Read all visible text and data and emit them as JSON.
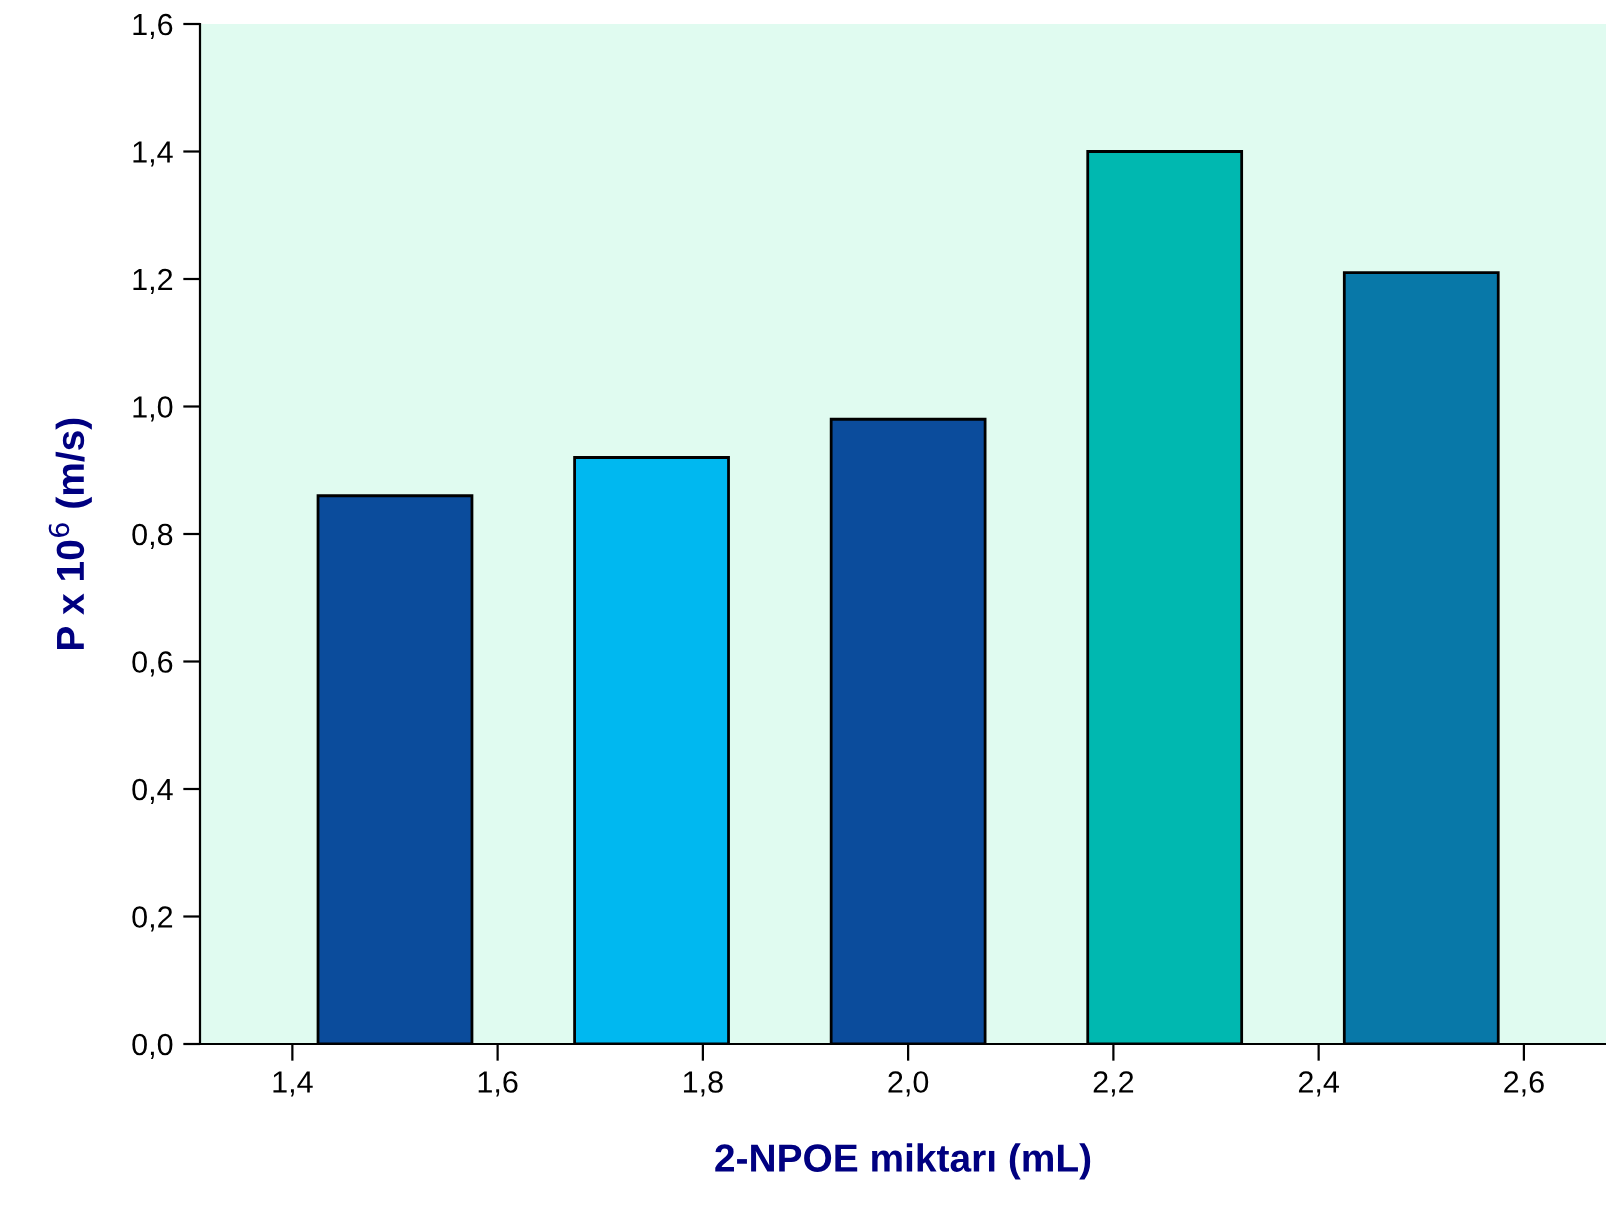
{
  "chart_data": {
    "type": "bar",
    "xlabel": "2-NPOE miktarı (mL)",
    "ylabel": "P x 10$^{6}$ (m/s)",
    "x": [
      1.5,
      1.75,
      2.0,
      2.25,
      2.5
    ],
    "values": [
      0.86,
      0.92,
      0.98,
      1.4,
      1.21
    ],
    "colors": [
      "#0b4c9c",
      "#00b8f0",
      "#0b4c9c",
      "#00b8b0",
      "#0878a8"
    ],
    "xlim": [
      1.31,
      2.68
    ],
    "xticks": [
      {
        "value": 1.4,
        "label": "1,4"
      },
      {
        "value": 1.6,
        "label": "1,6"
      },
      {
        "value": 1.8,
        "label": "1,8"
      },
      {
        "value": 2.0,
        "label": "2,0"
      },
      {
        "value": 2.2,
        "label": "2,2"
      },
      {
        "value": 2.4,
        "label": "2,4"
      },
      {
        "value": 2.6,
        "label": "2,6"
      }
    ],
    "ylim": [
      0,
      1.6
    ],
    "yticks": [
      {
        "value": 0,
        "label": "0,0"
      },
      {
        "value": 0.2,
        "label": "0,2"
      },
      {
        "value": 0.4,
        "label": "0,4"
      },
      {
        "value": 0.6,
        "label": "0,6"
      },
      {
        "value": 0.8,
        "label": "0,8"
      },
      {
        "value": 1.0,
        "label": "1,0"
      },
      {
        "value": 1.2,
        "label": "1,2"
      },
      {
        "value": 1.4,
        "label": "1,4"
      },
      {
        "value": 1.6,
        "label": "1,6"
      }
    ],
    "grid": false,
    "legend": false
  }
}
